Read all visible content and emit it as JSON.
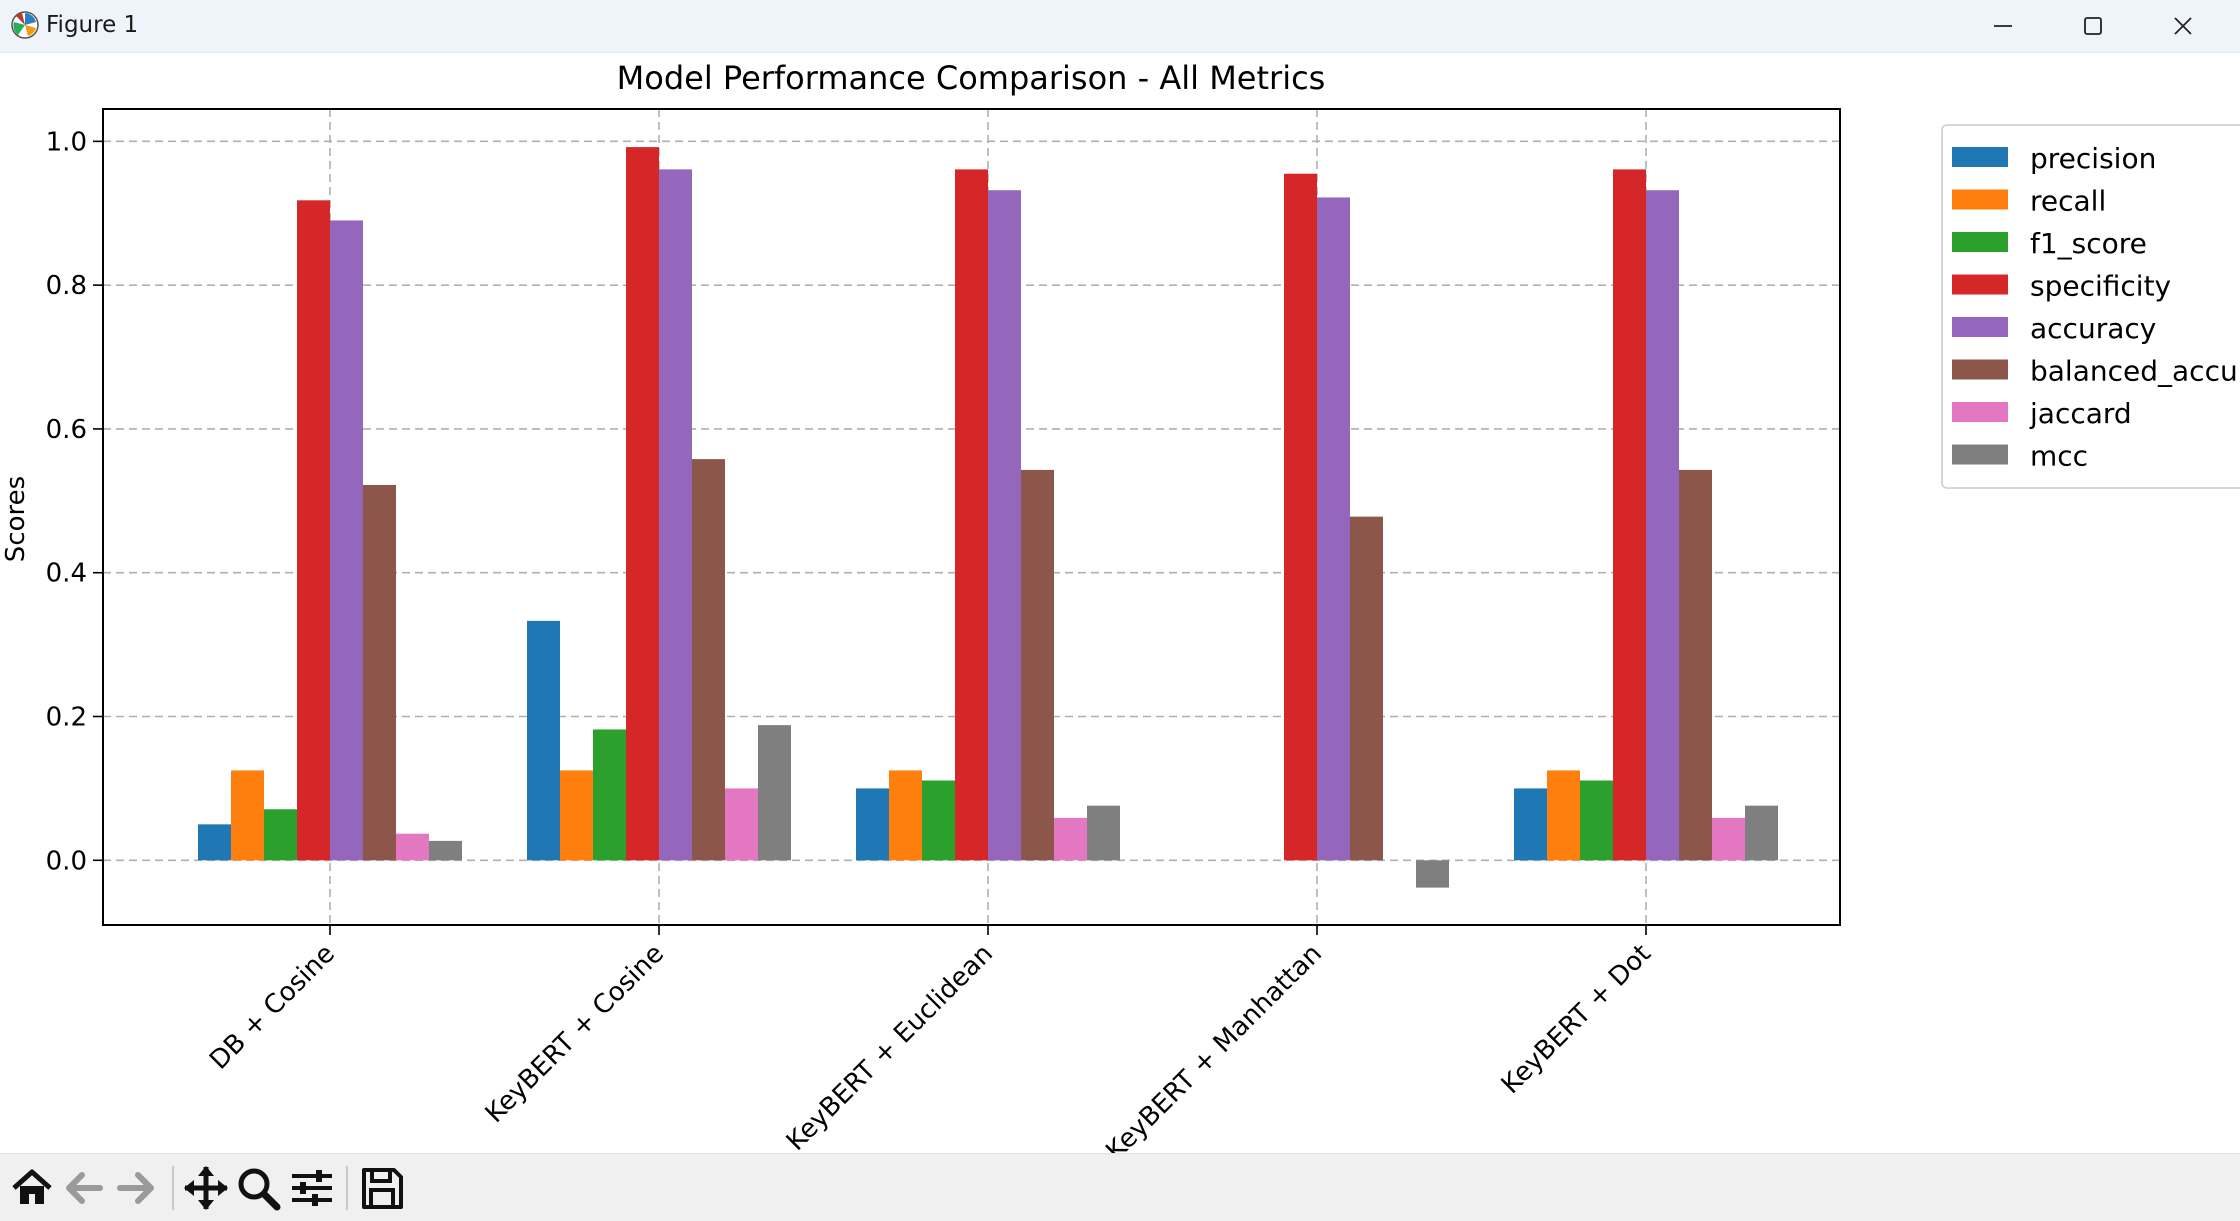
{
  "window": {
    "title": "Figure 1"
  },
  "icons": {
    "app": "matplotlib-icon",
    "minimize": "minimize-icon",
    "maximize": "maximize-icon",
    "close": "close-icon"
  },
  "toolbar": {
    "buttons": [
      {
        "name": "home-button",
        "icon": "home-icon"
      },
      {
        "name": "back-button",
        "icon": "arrow-left-icon"
      },
      {
        "name": "forward-button",
        "icon": "arrow-right-icon"
      },
      {
        "name": "pan-button",
        "icon": "move-icon"
      },
      {
        "name": "zoom-button",
        "icon": "magnifier-icon"
      },
      {
        "name": "configure-subplots-button",
        "icon": "sliders-icon"
      },
      {
        "name": "save-button",
        "icon": "floppy-disk-icon"
      }
    ]
  },
  "chart_data": {
    "type": "bar",
    "title": "Model Performance Comparison - All Metrics",
    "xlabel": "",
    "ylabel": "Scores",
    "ylim": [
      -0.09,
      1.045
    ],
    "yticks": [
      "0.0",
      "0.2",
      "0.4",
      "0.6",
      "0.8",
      "1.0"
    ],
    "ytick_values": [
      0.0,
      0.2,
      0.4,
      0.6,
      0.8,
      1.0
    ],
    "grid": true,
    "legend_position": "outside-right",
    "categories": [
      "DB + Cosine",
      "KeyBERT + Cosine",
      "KeyBERT + Euclidean",
      "KeyBERT + Manhattan",
      "KeyBERT + Dot"
    ],
    "series": [
      {
        "name": "precision",
        "color": "#1f77b4",
        "values": [
          0.05,
          0.333,
          0.1,
          0.0,
          0.1
        ]
      },
      {
        "name": "recall",
        "color": "#ff7f0e",
        "values": [
          0.125,
          0.125,
          0.125,
          0.0,
          0.125
        ]
      },
      {
        "name": "f1_score",
        "color": "#2ca02c",
        "values": [
          0.071,
          0.182,
          0.111,
          0.0,
          0.111
        ]
      },
      {
        "name": "specificity",
        "color": "#d62728",
        "values": [
          0.918,
          0.992,
          0.961,
          0.955,
          0.961
        ]
      },
      {
        "name": "accuracy",
        "color": "#9467bd",
        "values": [
          0.89,
          0.961,
          0.932,
          0.922,
          0.932
        ]
      },
      {
        "name": "balanced_accuracy",
        "color": "#8c564b",
        "values": [
          0.522,
          0.558,
          0.543,
          0.478,
          0.543
        ]
      },
      {
        "name": "jaccard",
        "color": "#e377c2",
        "values": [
          0.037,
          0.1,
          0.059,
          0.0,
          0.059
        ]
      },
      {
        "name": "mcc",
        "color": "#7f7f7f",
        "values": [
          0.027,
          0.188,
          0.076,
          -0.038,
          0.076
        ]
      }
    ]
  }
}
